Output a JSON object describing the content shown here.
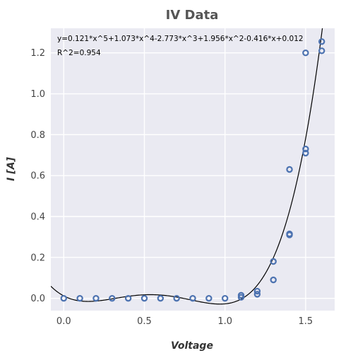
{
  "chart_data": {
    "type": "scatter",
    "title": "IV Data",
    "xlabel": "Voltage",
    "ylabel": "I [A]",
    "xlim": [
      -0.08,
      1.68
    ],
    "ylim": [
      -0.06,
      1.32
    ],
    "xticks": [
      0.0,
      0.5,
      1.0,
      1.5
    ],
    "xtick_labels": [
      "0.0",
      "0.5",
      "1.0",
      "1.5"
    ],
    "yticks": [
      0.0,
      0.2,
      0.4,
      0.6,
      0.8,
      1.0,
      1.2
    ],
    "ytick_labels": [
      "0.0",
      "0.2",
      "0.4",
      "0.6",
      "0.8",
      "1.0",
      "1.2"
    ],
    "grid": true,
    "background": "#eaeaf2",
    "annotations": [
      "y=0.121*x^5+1.073*x^4-2.773*x^3+1.956*x^2-0.416*x+0.012",
      "R^2=0.954"
    ],
    "series": [
      {
        "kind": "scatter",
        "marker": "open-circle",
        "color": "#4c72b0",
        "points": [
          [
            0.0,
            0.0
          ],
          [
            0.1,
            0.0
          ],
          [
            0.2,
            0.0
          ],
          [
            0.3,
            0.0
          ],
          [
            0.4,
            0.0
          ],
          [
            0.5,
            0.0
          ],
          [
            0.6,
            0.0
          ],
          [
            0.7,
            0.0
          ],
          [
            0.8,
            0.0
          ],
          [
            0.9,
            0.0
          ],
          [
            1.0,
            0.0
          ],
          [
            1.1,
            0.005
          ],
          [
            1.1,
            0.015
          ],
          [
            1.2,
            0.02
          ],
          [
            1.2,
            0.035
          ],
          [
            1.3,
            0.09
          ],
          [
            1.3,
            0.18
          ],
          [
            1.4,
            0.31
          ],
          [
            1.4,
            0.315
          ],
          [
            1.4,
            0.63
          ],
          [
            1.5,
            0.71
          ],
          [
            1.5,
            0.73
          ],
          [
            1.5,
            1.2
          ],
          [
            1.6,
            1.21
          ],
          [
            1.6,
            1.255
          ]
        ]
      },
      {
        "kind": "fit-line",
        "color": "#000000",
        "coefficients": [
          0.121,
          1.073,
          -2.773,
          1.956,
          -0.416,
          0.012
        ],
        "x_range": [
          -0.08,
          1.68
        ]
      }
    ]
  }
}
